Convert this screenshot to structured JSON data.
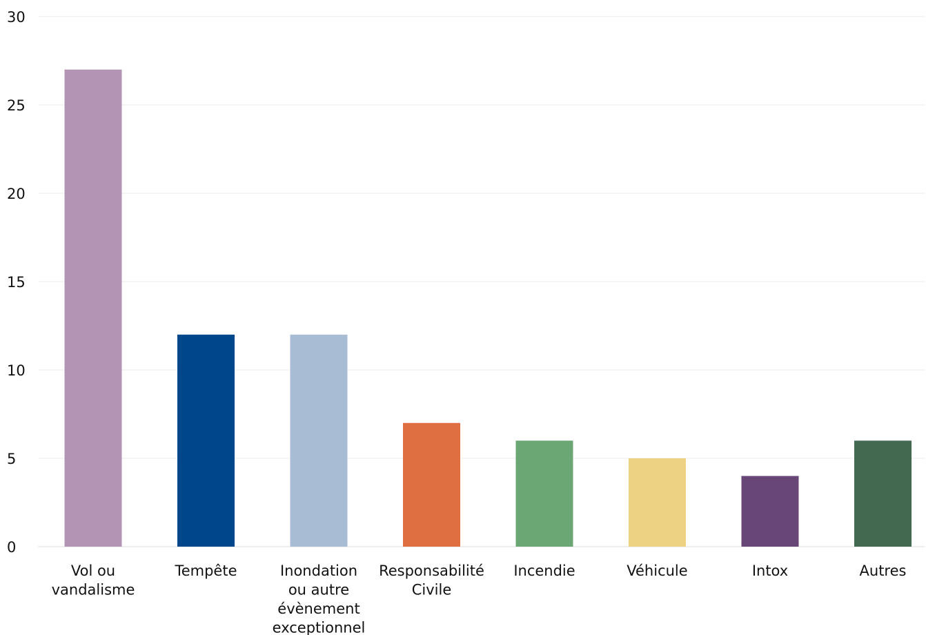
{
  "chart_data": {
    "type": "bar",
    "title": "",
    "xlabel": "",
    "ylabel": "",
    "ylim": [
      0,
      30
    ],
    "yticks": [
      0,
      5,
      10,
      15,
      20,
      25,
      30
    ],
    "grid": true,
    "legend": "none",
    "categories": [
      "Vol ou vandalisme",
      "Tempête",
      "Inondation ou autre évènement exceptionnel",
      "Responsabilité Civile",
      "Incendie",
      "Véhicule",
      "Intox",
      "Autres"
    ],
    "category_lines": [
      [
        "Vol ou",
        "vandalisme"
      ],
      [
        "Tempête"
      ],
      [
        "Inondation",
        "ou autre",
        "évènement",
        "exceptionnel"
      ],
      [
        "Responsabilité",
        "Civile"
      ],
      [
        "Incendie"
      ],
      [
        "Véhicule"
      ],
      [
        "Intox"
      ],
      [
        "Autres"
      ]
    ],
    "values": [
      27,
      12,
      12,
      7,
      6,
      5,
      4,
      6
    ],
    "colors": [
      "#b494b4",
      "#00468b",
      "#a8bcd4",
      "#df6e41",
      "#6aa775",
      "#ecd282",
      "#684677",
      "#436951"
    ]
  }
}
